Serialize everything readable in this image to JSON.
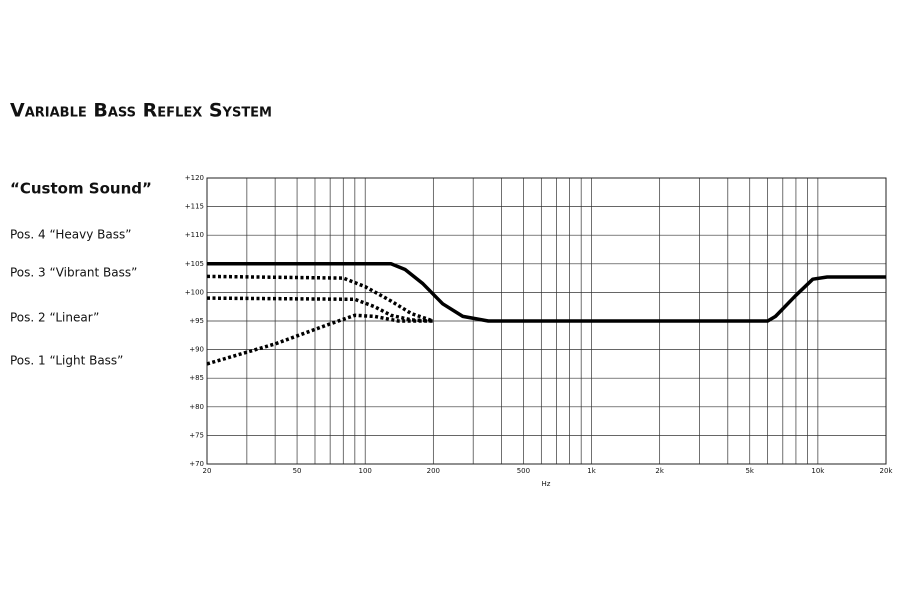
{
  "chart_data": {
    "type": "line",
    "title": "Variable Bass Reflex System",
    "subtitle": "“Custom Sound”",
    "x_label": "Hz",
    "xscale": "log",
    "xlim": [
      20,
      20000
    ],
    "ylim": [
      70,
      120
    ],
    "xticks": [
      20,
      50,
      100,
      200,
      500,
      {
        "value": 1000,
        "label": "1k"
      },
      {
        "value": 2000,
        "label": "2k"
      },
      {
        "value": 5000,
        "label": "5k"
      },
      {
        "value": 10000,
        "label": "10k"
      },
      {
        "value": 20000,
        "label": "20k"
      }
    ],
    "xminor": [
      30,
      40,
      60,
      70,
      80,
      90,
      300,
      400,
      600,
      700,
      800,
      900,
      3000,
      4000,
      6000,
      7000,
      8000,
      9000
    ],
    "yticks": [
      {
        "value": 70,
        "label": "+70"
      },
      {
        "value": 75,
        "label": "+75"
      },
      {
        "value": 80,
        "label": "+80"
      },
      {
        "value": 85,
        "label": "+85"
      },
      {
        "value": 90,
        "label": "+90"
      },
      {
        "value": 95,
        "label": "+95"
      },
      {
        "value": 100,
        "label": "+100"
      },
      {
        "value": 105,
        "label": "+105"
      },
      {
        "value": 110,
        "label": "+110"
      },
      {
        "value": 115,
        "label": "+115"
      },
      {
        "value": 120,
        "label": "+120"
      }
    ],
    "grid": true,
    "series": [
      {
        "name": "Pos. 4 “Heavy Bass”",
        "color": "#000000",
        "style": "solid",
        "x": [
          20,
          130,
          150,
          180,
          220,
          270,
          350,
          6000,
          6500,
          8000,
          9500,
          11000,
          20000
        ],
        "values": [
          105,
          105,
          104,
          101.5,
          98,
          95.8,
          95,
          95,
          95.8,
          99.5,
          102.3,
          102.7,
          102.7
        ]
      },
      {
        "name": "Pos. 3 “Vibrant Bass”",
        "color": "#000000",
        "style": "dotted",
        "x": [
          20,
          80,
          100,
          130,
          160,
          200
        ],
        "values": [
          102.8,
          102.5,
          101,
          98.5,
          96.3,
          95
        ]
      },
      {
        "name": "Pos. 2 “Linear”",
        "color": "#000000",
        "style": "dotted",
        "x": [
          20,
          90,
          110,
          130,
          160,
          200
        ],
        "values": [
          99,
          98.8,
          97.5,
          96,
          95.2,
          95
        ]
      },
      {
        "name": "Pos. 1 “Light Bass”",
        "color": "#000000",
        "style": "dotted",
        "x": [
          20,
          40,
          70,
          90,
          110,
          140,
          200
        ],
        "values": [
          87.5,
          91,
          94.5,
          96,
          95.8,
          95,
          95
        ]
      }
    ]
  }
}
